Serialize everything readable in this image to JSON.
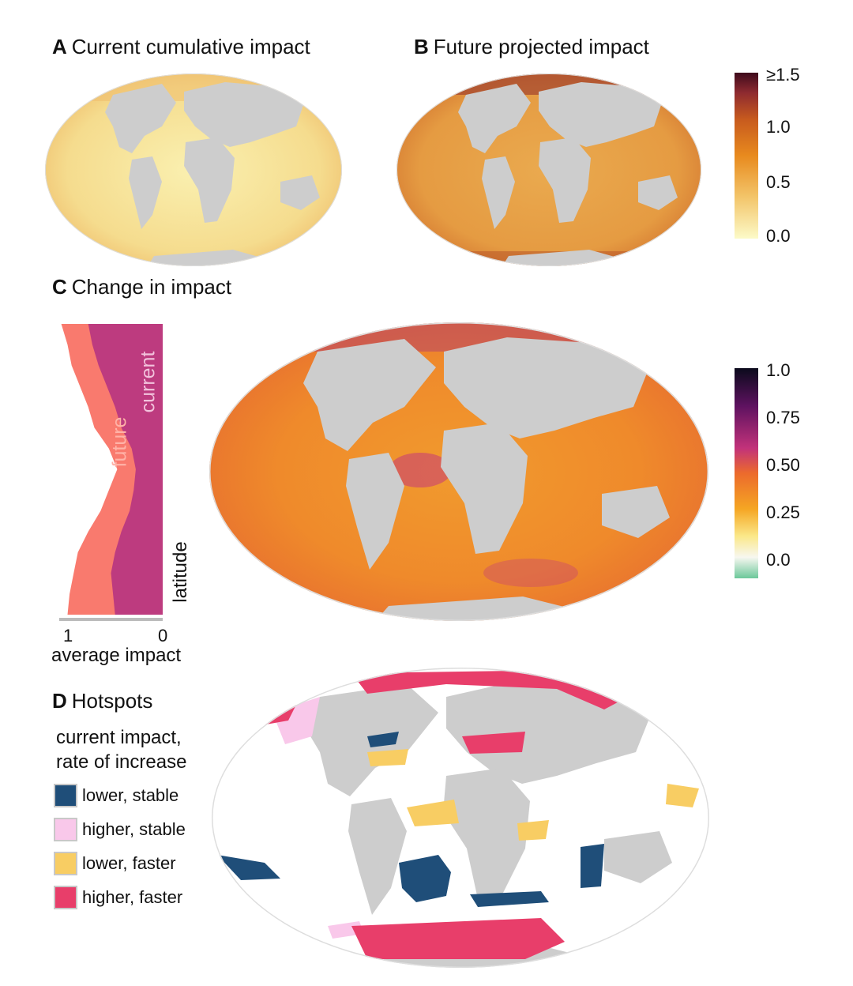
{
  "panels": {
    "a": {
      "letter": "A",
      "title": "Current cumulative impact"
    },
    "b": {
      "letter": "B",
      "title": "Future projected impact"
    },
    "c": {
      "letter": "C",
      "title": "Change in impact"
    },
    "d": {
      "letter": "D",
      "title": "Hotspots"
    }
  },
  "colorbar_ab": {
    "ticks": [
      "≥1.5",
      "1.0",
      "0.5",
      "0.0"
    ],
    "colors": [
      "#fcfac8",
      "#f3c56a",
      "#e88a1e",
      "#c75a1e",
      "#8e2a30",
      "#3e0a1c"
    ]
  },
  "colorbar_c": {
    "ticks": [
      "1.0",
      "0.75",
      "0.50",
      "0.25",
      "0.0"
    ],
    "colors": [
      "#6cc89a",
      "#f7f7f0",
      "#fbe88a",
      "#f5a623",
      "#ec6a2c",
      "#c2327a",
      "#5e1260",
      "#0b0a1c"
    ]
  },
  "profile": {
    "future_label": "future",
    "current_label": "current",
    "axis_label": "latitude",
    "xticks": [
      "1",
      "0"
    ],
    "xlabel": "average impact",
    "future_color": "#f97a6e",
    "current_color": "#bd3b7f",
    "chart_data": {
      "type": "area",
      "xlabel": "average impact",
      "ylabel": "latitude",
      "xlim": [
        1,
        0
      ],
      "series": [
        {
          "name": "future",
          "values": [
            0.98,
            0.92,
            0.88,
            0.8,
            0.72,
            0.66,
            0.52,
            0.44,
            0.52,
            0.6,
            0.72,
            0.82,
            0.86,
            0.9,
            0.92
          ]
        },
        {
          "name": "current",
          "values": [
            0.72,
            0.68,
            0.62,
            0.54,
            0.46,
            0.4,
            0.3,
            0.26,
            0.28,
            0.32,
            0.4,
            0.46,
            0.5,
            0.48,
            0.46
          ]
        }
      ]
    }
  },
  "hotspots": {
    "legend_title_line1": "current impact,",
    "legend_title_line2": "rate of increase",
    "items": [
      {
        "label": "lower, stable",
        "color": "#1f4e79"
      },
      {
        "label": "higher, stable",
        "color": "#f9c8ea"
      },
      {
        "label": "lower, faster",
        "color": "#f8cd63"
      },
      {
        "label": "higher, faster",
        "color": "#e83e6a"
      }
    ]
  },
  "land_color": "#cdcdcd"
}
